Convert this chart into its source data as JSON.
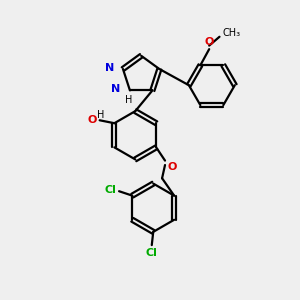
{
  "bg_color": "#efefef",
  "bond_color": "#000000",
  "line_width": 1.6,
  "n_color": "#0000dd",
  "o_color": "#dd0000",
  "cl_color": "#00aa00",
  "fig_size": [
    3.0,
    3.0
  ],
  "dpi": 100,
  "xlim": [
    0,
    10
  ],
  "ylim": [
    0,
    10
  ]
}
